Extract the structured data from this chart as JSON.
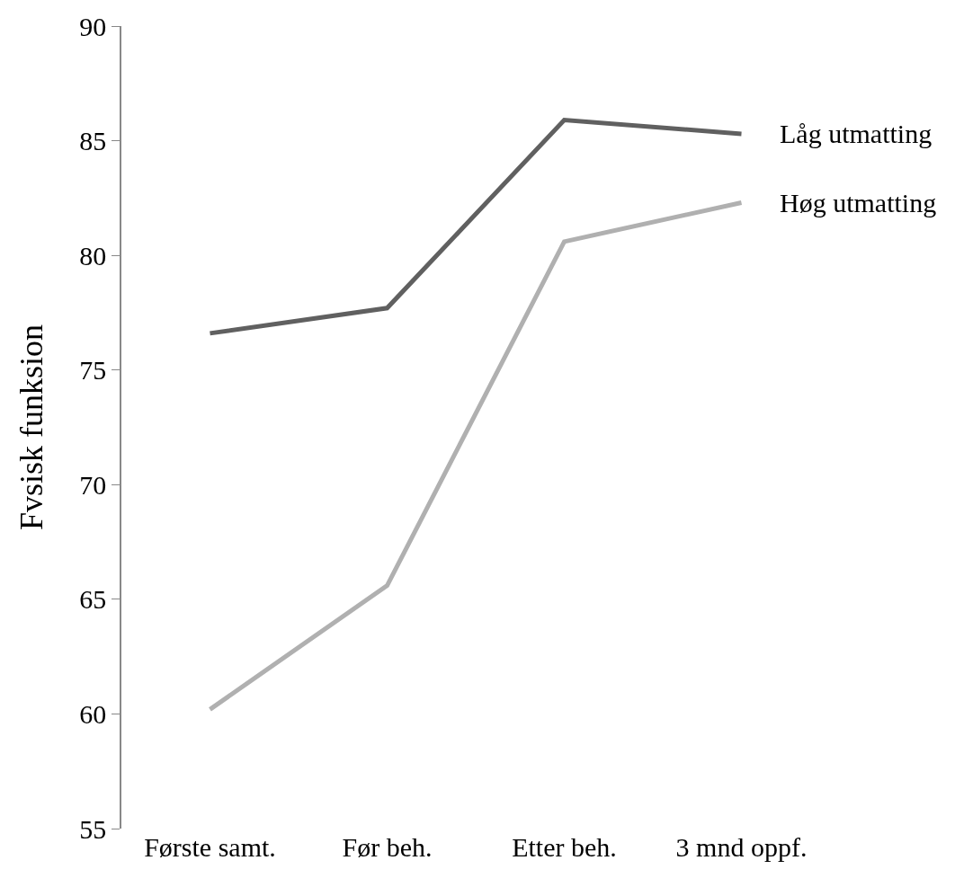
{
  "chart_data": {
    "type": "line",
    "ylabel": "Fvsisk funksion",
    "categories": [
      "Første samt.",
      "Før beh.",
      "Etter beh.",
      "3 mnd oppf."
    ],
    "series": [
      {
        "name": "Låg utmatting",
        "color": "#606060",
        "values": [
          76.6,
          77.7,
          85.9,
          85.3
        ]
      },
      {
        "name": "Høg utmatting",
        "color": "#b0b0b0",
        "values": [
          60.2,
          65.6,
          80.6,
          82.3
        ]
      }
    ],
    "ylim": [
      55,
      90
    ],
    "yticks": [
      55,
      60,
      65,
      70,
      75,
      80,
      85,
      90
    ],
    "legend": false,
    "marker": "none",
    "line_style": "solid"
  }
}
